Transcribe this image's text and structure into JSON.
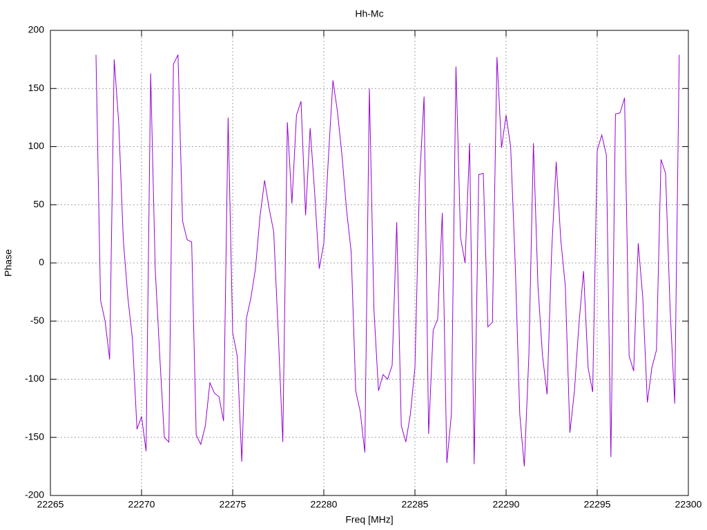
{
  "chart_data": {
    "type": "line",
    "title": "Hh-Mc",
    "x_label": "Freq [MHz]",
    "y_label": "Phase",
    "x": [
      22267.5,
      22267.75,
      22268,
      22268.25,
      22268.5,
      22268.75,
      22269,
      22269.25,
      22269.5,
      22269.75,
      22270,
      22270.25,
      22270.5,
      22270.75,
      22271,
      22271.25,
      22271.5,
      22271.75,
      22272,
      22272.25,
      22272.5,
      22272.75,
      22273,
      22273.25,
      22273.5,
      22273.75,
      22274,
      22274.25,
      22274.5,
      22274.75,
      22275,
      22275.25,
      22275.5,
      22275.75,
      22276,
      22276.25,
      22276.5,
      22276.75,
      22277,
      22277.25,
      22277.5,
      22277.75,
      22278,
      22278.25,
      22278.5,
      22278.75,
      22279,
      22279.25,
      22279.5,
      22279.75,
      22280,
      22280.25,
      22280.5,
      22280.75,
      22281,
      22281.25,
      22281.5,
      22281.75,
      22282,
      22282.25,
      22282.5,
      22282.75,
      22283,
      22283.25,
      22283.5,
      22283.75,
      22284,
      22284.25,
      22284.5,
      22284.75,
      22285,
      22285.25,
      22285.5,
      22285.75,
      22286,
      22286.25,
      22286.5,
      22286.75,
      22287,
      22287.25,
      22287.5,
      22287.75,
      22288,
      22288.25,
      22288.5,
      22288.75,
      22289,
      22289.25,
      22289.5,
      22289.75,
      22290,
      22290.25,
      22290.5,
      22290.75,
      22291,
      22291.25,
      22291.5,
      22291.75,
      22292,
      22292.25,
      22292.5,
      22292.75,
      22293,
      22293.25,
      22293.5,
      22293.75,
      22294,
      22294.25,
      22294.5,
      22294.75,
      22295,
      22295.25,
      22295.5,
      22295.75,
      22296,
      22296.25,
      22296.5,
      22296.75,
      22297,
      22297.25,
      22297.5,
      22297.75,
      22298,
      22298.25,
      22298.5,
      22298.75,
      22299,
      22299.25,
      22299.5
    ],
    "series": [
      {
        "color": "#9400d3",
        "values": [
          179,
          -32,
          -50,
          -83,
          175,
          120,
          20,
          -30,
          -65,
          -143,
          -132,
          -162,
          163,
          -5,
          -80,
          -150,
          -154,
          171,
          179,
          36,
          20,
          18,
          -148,
          -156,
          -140,
          -103,
          -112,
          -115,
          -136,
          125,
          -60,
          -80,
          -171,
          -48,
          -30,
          -5,
          40,
          71,
          47,
          27,
          -60,
          -154,
          121,
          51,
          127,
          139,
          41,
          116,
          60,
          -5,
          17,
          90,
          157,
          130,
          92,
          45,
          10,
          -110,
          -128,
          -163,
          150,
          -40,
          -110,
          -96,
          -100,
          -88,
          35,
          -140,
          -154,
          -130,
          -90,
          70,
          143,
          -147,
          -58,
          -48,
          43,
          -172,
          -130,
          169,
          22,
          0,
          103,
          -173,
          76,
          77,
          -55,
          -51,
          177,
          99,
          127,
          100,
          0,
          -130,
          -175,
          -80,
          103,
          -20,
          -80,
          -113,
          10,
          87,
          20,
          -20,
          -146,
          -110,
          -52,
          -7,
          -90,
          -111,
          97,
          110,
          93,
          -167,
          128,
          129,
          142,
          -80,
          -93,
          17,
          -30,
          -120,
          -90,
          -75,
          89,
          77,
          -40,
          -121,
          179
        ]
      }
    ],
    "xlim": [
      22265,
      22300
    ],
    "xticks": [
      22265,
      22270,
      22275,
      22280,
      22285,
      22290,
      22295,
      22300
    ],
    "ylim": [
      -200,
      200
    ],
    "yticks": [
      -200,
      -150,
      -100,
      -50,
      0,
      50,
      100,
      150,
      200
    ],
    "grid": true
  }
}
